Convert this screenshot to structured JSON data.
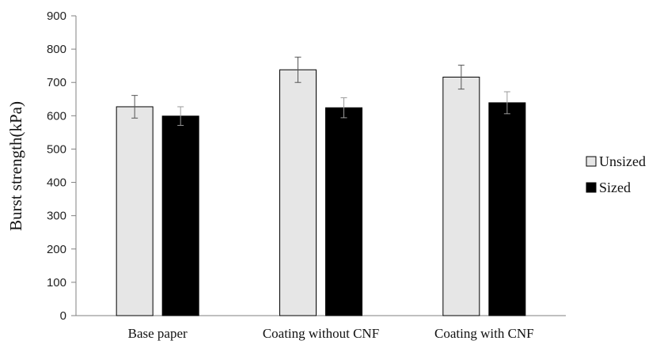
{
  "chart_data": {
    "type": "bar",
    "title": "",
    "xlabel": "",
    "ylabel": "Burst strength(kPa)",
    "ylim": [
      0,
      900
    ],
    "yticks": [
      0,
      100,
      200,
      300,
      400,
      500,
      600,
      700,
      800,
      900
    ],
    "grid": false,
    "legend_position": "right",
    "categories": [
      "Base paper",
      "Coating without CNF",
      "Coating with CNF"
    ],
    "series": [
      {
        "name": "Unsized",
        "color": "#e6e6e6",
        "values": [
          627,
          738,
          716
        ],
        "errors": [
          34,
          38,
          36
        ]
      },
      {
        "name": "Sized",
        "color": "#000000",
        "values": [
          599,
          624,
          639
        ],
        "errors": [
          28,
          30,
          33
        ]
      }
    ]
  }
}
